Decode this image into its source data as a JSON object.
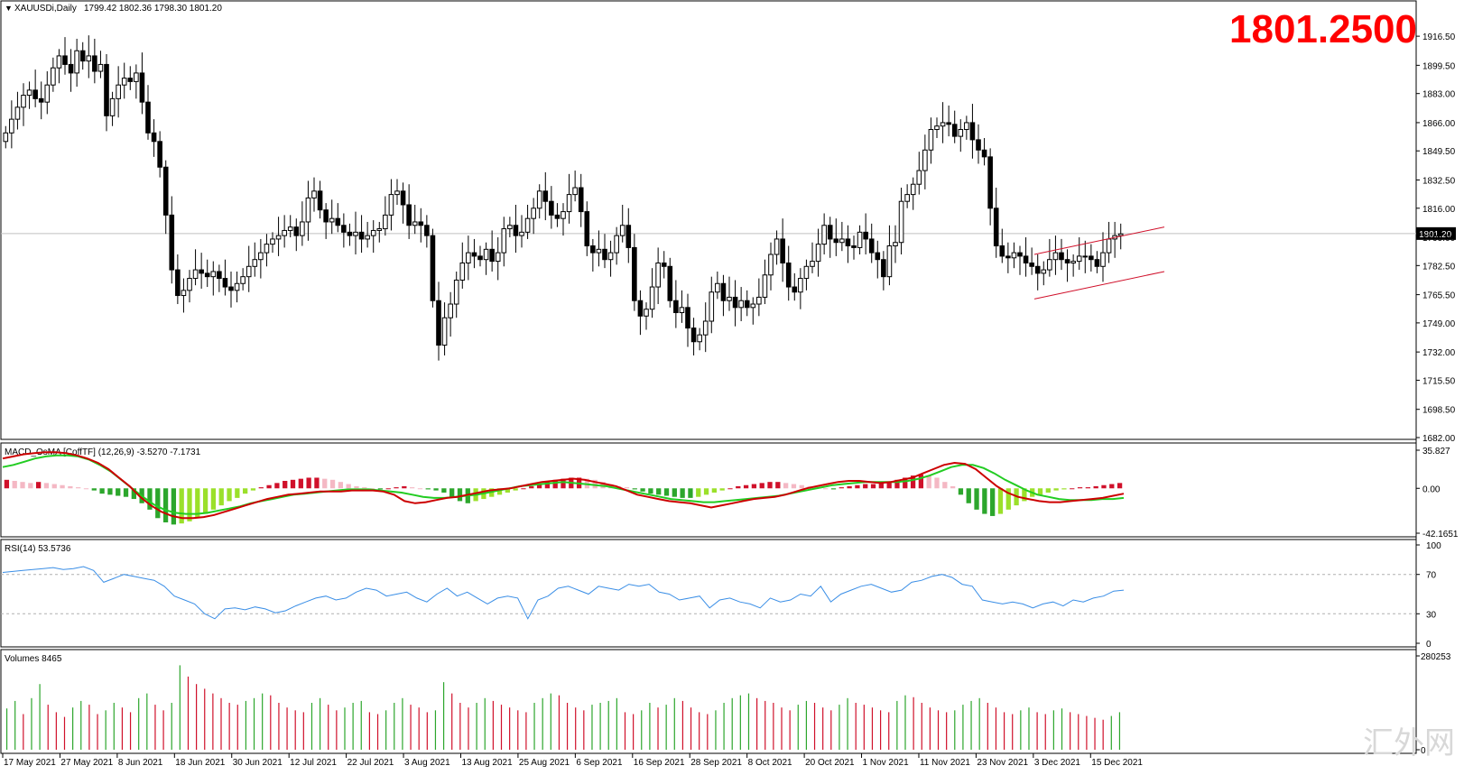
{
  "header": {
    "symbol": "XAUUSDi,Daily",
    "ohlc": "1799.42 1802.36 1798.30 1801.20",
    "big_price": "1801.2500",
    "current_price_label": "1801.20"
  },
  "watermark": "汇外网",
  "price_axis": {
    "min": 1682.0,
    "max": 1925.0,
    "ticks": [
      "1916.50",
      "1899.50",
      "1883.00",
      "1866.00",
      "1849.50",
      "1832.50",
      "1816.00",
      "1799.00",
      "1782.50",
      "1765.50",
      "1749.00",
      "1732.00",
      "1715.50",
      "1698.50",
      "1682.00"
    ],
    "current": 1801.2
  },
  "macd": {
    "label": "MACD_OsMA [CoffTF] (12,26,9) -3.5270 -7.1731",
    "ticks": [
      "35.827",
      "0.00",
      "-42.1651"
    ],
    "min": -42.1651,
    "max": 35.827
  },
  "rsi": {
    "label": "RSI(14) 53.5736",
    "ticks": [
      "100",
      "70",
      "30",
      "0"
    ],
    "levels": [
      70,
      30
    ]
  },
  "volume": {
    "label": "Volumes 8465",
    "ticks": [
      "280253",
      "0"
    ],
    "max": 280253
  },
  "date_axis": {
    "labels": [
      "17 May 2021",
      "27 May 2021",
      "8 Jun 2021",
      "18 Jun 2021",
      "30 Jun 2021",
      "12 Jul 2021",
      "22 Jul 2021",
      "3 Aug 2021",
      "13 Aug 2021",
      "25 Aug 2021",
      "6 Sep 2021",
      "16 Sep 2021",
      "28 Sep 2021",
      "8 Oct 2021",
      "20 Oct 2021",
      "1 Nov 2021",
      "11 Nov 2021",
      "23 Nov 2021",
      "3 Dec 2021",
      "15 Dec 2021"
    ]
  },
  "chart_data": {
    "type": "line",
    "title": "XAUUSDi,Daily",
    "x_range": [
      "17 May 2021",
      "17 Dec 2021"
    ],
    "series": [
      {
        "values": [
          1860,
          1868,
          1875,
          1882,
          1885,
          1880,
          1878,
          1888,
          1898,
          1905,
          1900,
          1895,
          1908,
          1902,
          1905,
          1896,
          1900,
          1870,
          1880,
          1888,
          1892,
          1890,
          1895,
          1878,
          1860,
          1855,
          1840,
          1812,
          1780,
          1765,
          1768,
          1775,
          1780,
          1778,
          1776,
          1779,
          1775,
          1770,
          1768,
          1772,
          1776,
          1782,
          1786,
          1790,
          1795,
          1798,
          1800,
          1803,
          1805,
          1800,
          1808,
          1822,
          1826,
          1815,
          1808,
          1810,
          1806,
          1802,
          1800,
          1802,
          1798,
          1800,
          1803,
          1804,
          1812,
          1824,
          1826,
          1818,
          1806,
          1808,
          1806,
          1800,
          1762,
          1736,
          1752,
          1760,
          1774,
          1784,
          1790,
          1788,
          1786,
          1792,
          1785,
          1790,
          1804,
          1806,
          1800,
          1802,
          1810,
          1816,
          1826,
          1820,
          1812,
          1810,
          1814,
          1824,
          1828,
          1814,
          1794,
          1790,
          1792,
          1786,
          1790,
          1800,
          1806,
          1793,
          1762,
          1753,
          1757,
          1770,
          1784,
          1782,
          1762,
          1755,
          1758,
          1746,
          1738,
          1742,
          1750,
          1767,
          1772,
          1762,
          1764,
          1758,
          1762,
          1758,
          1760,
          1764,
          1777,
          1789,
          1798,
          1784,
          1770,
          1767,
          1775,
          1782,
          1785,
          1795,
          1806,
          1798,
          1796,
          1798,
          1794,
          1793,
          1802,
          1798,
          1790,
          1786,
          1776,
          1794,
          1796,
          1820,
          1824,
          1830,
          1838,
          1850,
          1862,
          1864,
          1866,
          1865,
          1858,
          1862,
          1866,
          1856,
          1850,
          1846,
          1816,
          1794,
          1788,
          1787,
          1790,
          1788,
          1784,
          1782,
          1778,
          1780,
          1786,
          1790,
          1786,
          1784,
          1785,
          1788,
          1788,
          1786,
          1782,
          1790,
          1798,
          1800,
          1801
        ]
      }
    ],
    "macd_hist": [
      8,
      7,
      6,
      5,
      6,
      5,
      4,
      3,
      2,
      1,
      0,
      -2,
      -5,
      -6,
      -7,
      -8,
      -10,
      -14,
      -20,
      -28,
      -32,
      -34,
      -33,
      -31,
      -28,
      -24,
      -20,
      -16,
      -12,
      -9,
      -5,
      -2,
      1,
      3,
      5,
      7,
      8,
      9,
      10,
      10,
      9,
      8,
      6,
      4,
      2,
      1,
      0,
      -1,
      0,
      1,
      2,
      1,
      0,
      -1,
      -2,
      -4,
      -8,
      -12,
      -14,
      -12,
      -10,
      -8,
      -6,
      -4,
      -2,
      0,
      2,
      4,
      6,
      8,
      9,
      10,
      10,
      9,
      8,
      6,
      4,
      2,
      1,
      -1,
      -3,
      -5,
      -6,
      -7,
      -8,
      -9,
      -9,
      -8,
      -6,
      -4,
      -2,
      0,
      2,
      3,
      4,
      5,
      6,
      6,
      5,
      4,
      3,
      2,
      1,
      0,
      -1,
      1,
      2,
      3,
      4,
      4,
      5,
      6,
      8,
      10,
      12,
      13,
      12,
      10,
      6,
      2,
      -6,
      -14,
      -20,
      -24,
      -26,
      -24,
      -20,
      -16,
      -12,
      -8,
      -6,
      -4,
      -2,
      -1,
      0,
      1,
      1,
      2,
      3,
      4,
      5
    ],
    "macd_main": [
      28,
      30,
      32,
      33,
      34,
      34,
      33,
      31,
      28,
      24,
      18,
      10,
      2,
      -8,
      -16,
      -22,
      -26,
      -28,
      -28,
      -27,
      -25,
      -22,
      -19,
      -16,
      -13,
      -10,
      -8,
      -6,
      -5,
      -4,
      -3,
      -3,
      -3,
      -2,
      -2,
      -2,
      -3,
      -6,
      -12,
      -14,
      -13,
      -11,
      -9,
      -8,
      -6,
      -4,
      -2,
      -1,
      0,
      2,
      4,
      6,
      7,
      8,
      9,
      8,
      6,
      4,
      2,
      -2,
      -6,
      -8,
      -10,
      -12,
      -13,
      -14,
      -16,
      -18,
      -16,
      -14,
      -12,
      -10,
      -9,
      -8,
      -6,
      -3,
      0,
      2,
      4,
      6,
      7,
      7,
      6,
      5,
      6,
      8,
      10,
      14,
      18,
      22,
      24,
      23,
      18,
      10,
      2,
      -4,
      -8,
      -10,
      -12,
      -13,
      -13,
      -12,
      -11,
      -10,
      -9,
      -7,
      -5
    ],
    "macd_signal": [
      20,
      22,
      25,
      28,
      30,
      31,
      31,
      30,
      27,
      22,
      16,
      8,
      0,
      -8,
      -15,
      -20,
      -23,
      -24,
      -24,
      -23,
      -21,
      -19,
      -17,
      -14,
      -12,
      -10,
      -8,
      -6,
      -5,
      -4,
      -3,
      -2,
      -1,
      -1,
      -1,
      -2,
      -3,
      -4,
      -6,
      -8,
      -9,
      -9,
      -8,
      -7,
      -6,
      -4,
      -2,
      0,
      2,
      3,
      4,
      5,
      6,
      5,
      4,
      3,
      2,
      0,
      -2,
      -4,
      -6,
      -8,
      -10,
      -11,
      -12,
      -13,
      -13,
      -12,
      -11,
      -10,
      -9,
      -8,
      -7,
      -5,
      -3,
      -1,
      1,
      3,
      4,
      5,
      6,
      6,
      6,
      6,
      7,
      9,
      12,
      16,
      20,
      22,
      22,
      19,
      14,
      8,
      3,
      -2,
      -6,
      -8,
      -10,
      -11,
      -11,
      -11,
      -10,
      -10,
      -9
    ],
    "rsi_values": [
      72,
      73,
      74,
      75,
      76,
      77,
      75,
      76,
      78,
      74,
      62,
      66,
      70,
      68,
      66,
      64,
      58,
      48,
      44,
      40,
      30,
      25,
      35,
      36,
      34,
      37,
      35,
      31,
      33,
      38,
      42,
      46,
      48,
      44,
      46,
      52,
      56,
      54,
      48,
      50,
      52,
      46,
      42,
      50,
      56,
      48,
      52,
      46,
      40,
      46,
      48,
      46,
      25,
      44,
      48,
      56,
      58,
      54,
      50,
      58,
      56,
      54,
      60,
      58,
      60,
      52,
      50,
      44,
      46,
      48,
      36,
      44,
      46,
      42,
      40,
      36,
      46,
      42,
      44,
      50,
      48,
      58,
      42,
      50,
      54,
      58,
      60,
      56,
      52,
      54,
      62,
      64,
      68,
      70,
      67,
      60,
      58,
      44,
      42,
      40,
      42,
      40,
      36,
      40,
      42,
      38,
      44,
      42,
      46,
      48,
      53,
      54
    ],
    "volume_values": [
      44,
      52,
      38,
      55,
      70,
      48,
      40,
      35,
      45,
      52,
      48,
      38,
      42,
      50,
      45,
      40,
      55,
      60,
      48,
      42,
      50,
      90,
      78,
      70,
      65,
      60,
      55,
      50,
      48,
      52,
      55,
      60,
      58,
      50,
      45,
      42,
      40,
      50,
      55,
      48,
      42,
      45,
      50,
      52,
      40,
      38,
      42,
      50,
      55,
      48,
      45,
      40,
      42,
      72,
      60,
      50,
      45,
      50,
      55,
      52,
      48,
      45,
      42,
      40,
      50,
      55,
      60,
      58,
      50,
      45,
      42,
      48,
      50,
      52,
      55,
      40,
      38,
      42,
      50,
      45,
      48,
      55,
      52,
      45,
      40,
      38,
      42,
      50,
      55,
      58,
      60,
      55,
      52,
      50,
      45,
      42,
      48,
      52,
      50,
      45,
      42,
      48,
      55,
      50,
      48,
      45,
      42,
      40,
      52,
      58,
      56,
      50,
      45,
      42,
      40,
      42,
      48,
      52,
      55,
      50,
      45,
      40,
      38,
      42,
      45,
      40,
      38,
      42,
      44,
      40,
      38,
      36,
      34,
      32,
      36,
      40
    ],
    "channel_upper": [
      1789,
      1805
    ],
    "channel_lower": [
      1763,
      1779
    ]
  }
}
